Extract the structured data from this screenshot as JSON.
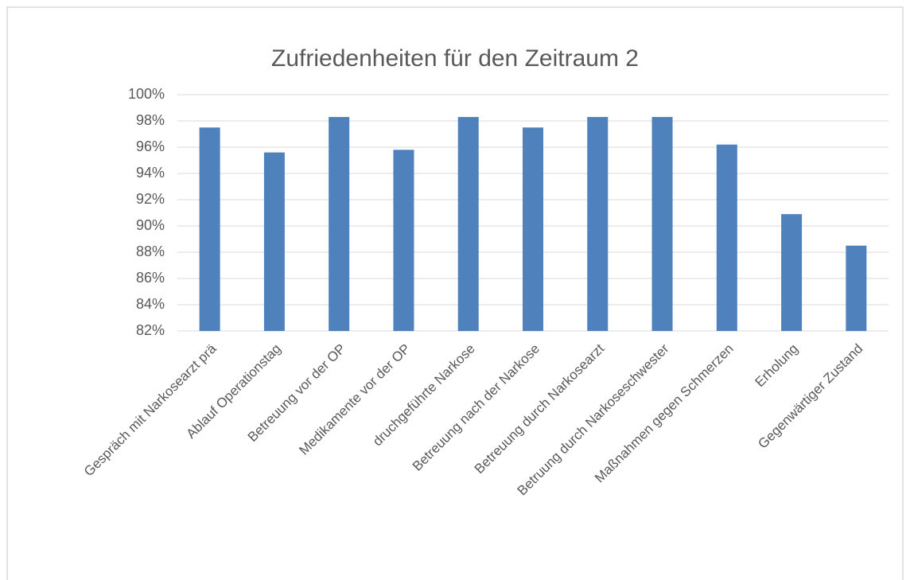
{
  "chart_data": {
    "type": "bar",
    "title": "Zufriedenheiten für den Zeitraum 2",
    "categories": [
      "Gespräch mit Narkosearzt prä",
      "Ablauf Operationstag",
      "Betreuung vor der OP",
      "Medikamente vor der OP",
      "druchgeführte Narkose",
      "Betreuung nach der Narkose",
      "Betreuung durch Narkosearzt",
      "Betruung durch Narkoseschwester",
      "Maßnahmen gegen Schmerzen",
      "Erholung",
      "Gegenwärtiger Zustand"
    ],
    "values": [
      97.5,
      95.6,
      98.3,
      95.8,
      98.3,
      97.5,
      98.3,
      98.3,
      96.2,
      90.9,
      88.5
    ],
    "color": "#4f81bd",
    "ylim": [
      82,
      100
    ],
    "yticks": [
      {
        "value": 82,
        "label": "82%"
      },
      {
        "value": 84,
        "label": "84%"
      },
      {
        "value": 86,
        "label": "86%"
      },
      {
        "value": 88,
        "label": "88%"
      },
      {
        "value": 90,
        "label": "90%"
      },
      {
        "value": 92,
        "label": "92%"
      },
      {
        "value": 94,
        "label": "94%"
      },
      {
        "value": 96,
        "label": "96%"
      },
      {
        "value": 98,
        "label": "98%"
      },
      {
        "value": 100,
        "label": "100%"
      }
    ],
    "grid": true
  }
}
